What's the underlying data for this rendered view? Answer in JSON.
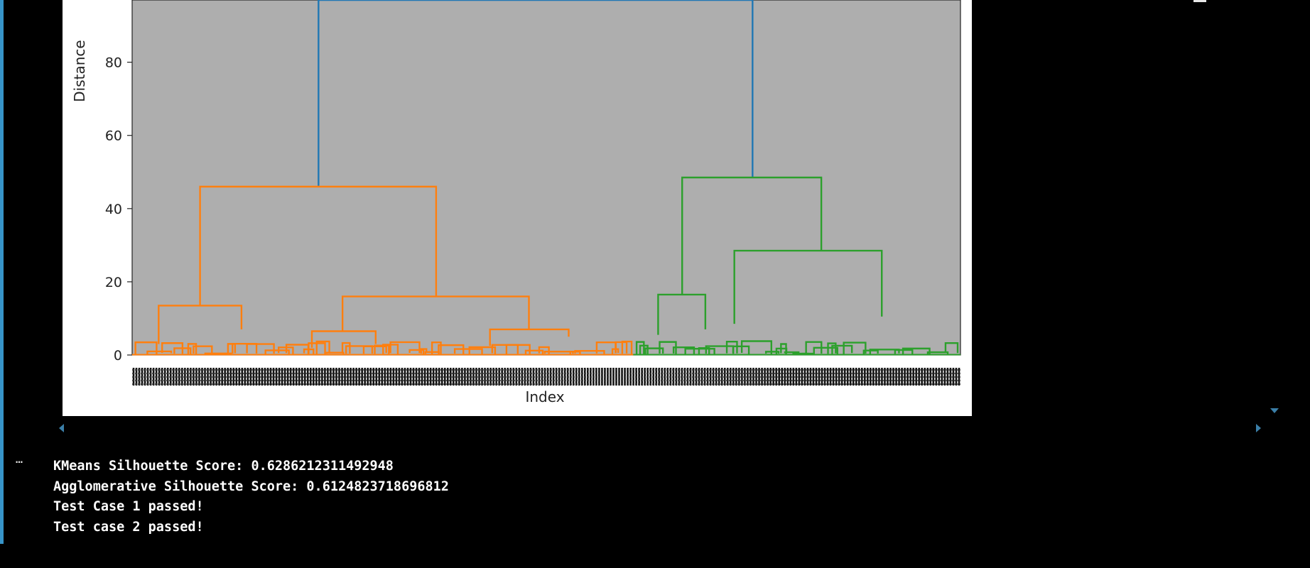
{
  "output_lines": [
    "KMeans Silhouette Score: 0.6286212311492948",
    "Agglomerative Silhouette Score: 0.6124823718696812",
    "Test Case 1 passed!",
    "Test case 2 passed!"
  ],
  "output_prompt": "⋯",
  "colors": {
    "cell_bar": "#3794c8",
    "plot_background": "#aeaeae",
    "link_top": "#1f77b4",
    "cluster_1": "#ff7f0e",
    "cluster_2": "#2ca02c",
    "scroll_arrows": "#3b7fa8"
  },
  "chart_data": {
    "type": "dendrogram",
    "xlabel": "Index",
    "ylabel": "Distance",
    "ylim": [
      0,
      97
    ],
    "yticks": [
      0,
      20,
      40,
      60,
      80
    ],
    "grid": false,
    "clusters": [
      {
        "color": "cluster_1",
        "leaf_range": [
          0,
          0.605
        ],
        "merge_height": 46
      },
      {
        "color": "cluster_2",
        "leaf_range": [
          0.605,
          1.0
        ],
        "merge_height": 48.5
      }
    ],
    "merges": [
      {
        "color": "link_top",
        "left_x": 0.225,
        "right_x": 0.749,
        "left_height": 46,
        "right_height": 48.5,
        "top_height": 97
      },
      {
        "color": "cluster_1",
        "left_x": 0.082,
        "right_x": 0.367,
        "left_height": 13.5,
        "right_height": 16,
        "top_height": 46
      },
      {
        "color": "cluster_1",
        "left_x": 0.254,
        "right_x": 0.479,
        "left_height": 6.5,
        "right_height": 7,
        "top_height": 16
      },
      {
        "color": "cluster_1",
        "left_x": 0.032,
        "right_x": 0.132,
        "left_height": 3,
        "right_height": 7,
        "top_height": 13.5
      },
      {
        "color": "cluster_1",
        "left_x": 0.217,
        "right_x": 0.294,
        "left_height": 2,
        "right_height": 3,
        "top_height": 6.5
      },
      {
        "color": "cluster_1",
        "left_x": 0.432,
        "right_x": 0.527,
        "left_height": 2.5,
        "right_height": 5,
        "top_height": 7
      },
      {
        "color": "cluster_2",
        "left_x": 0.664,
        "right_x": 0.832,
        "left_height": 16.5,
        "right_height": 28.5,
        "top_height": 48.5
      },
      {
        "color": "cluster_2",
        "left_x": 0.727,
        "right_x": 0.905,
        "left_height": 8.5,
        "right_height": 10.5,
        "top_height": 28.5
      },
      {
        "color": "cluster_2",
        "left_x": 0.635,
        "right_x": 0.692,
        "left_height": 5.5,
        "right_height": 7,
        "top_height": 16.5
      }
    ]
  }
}
